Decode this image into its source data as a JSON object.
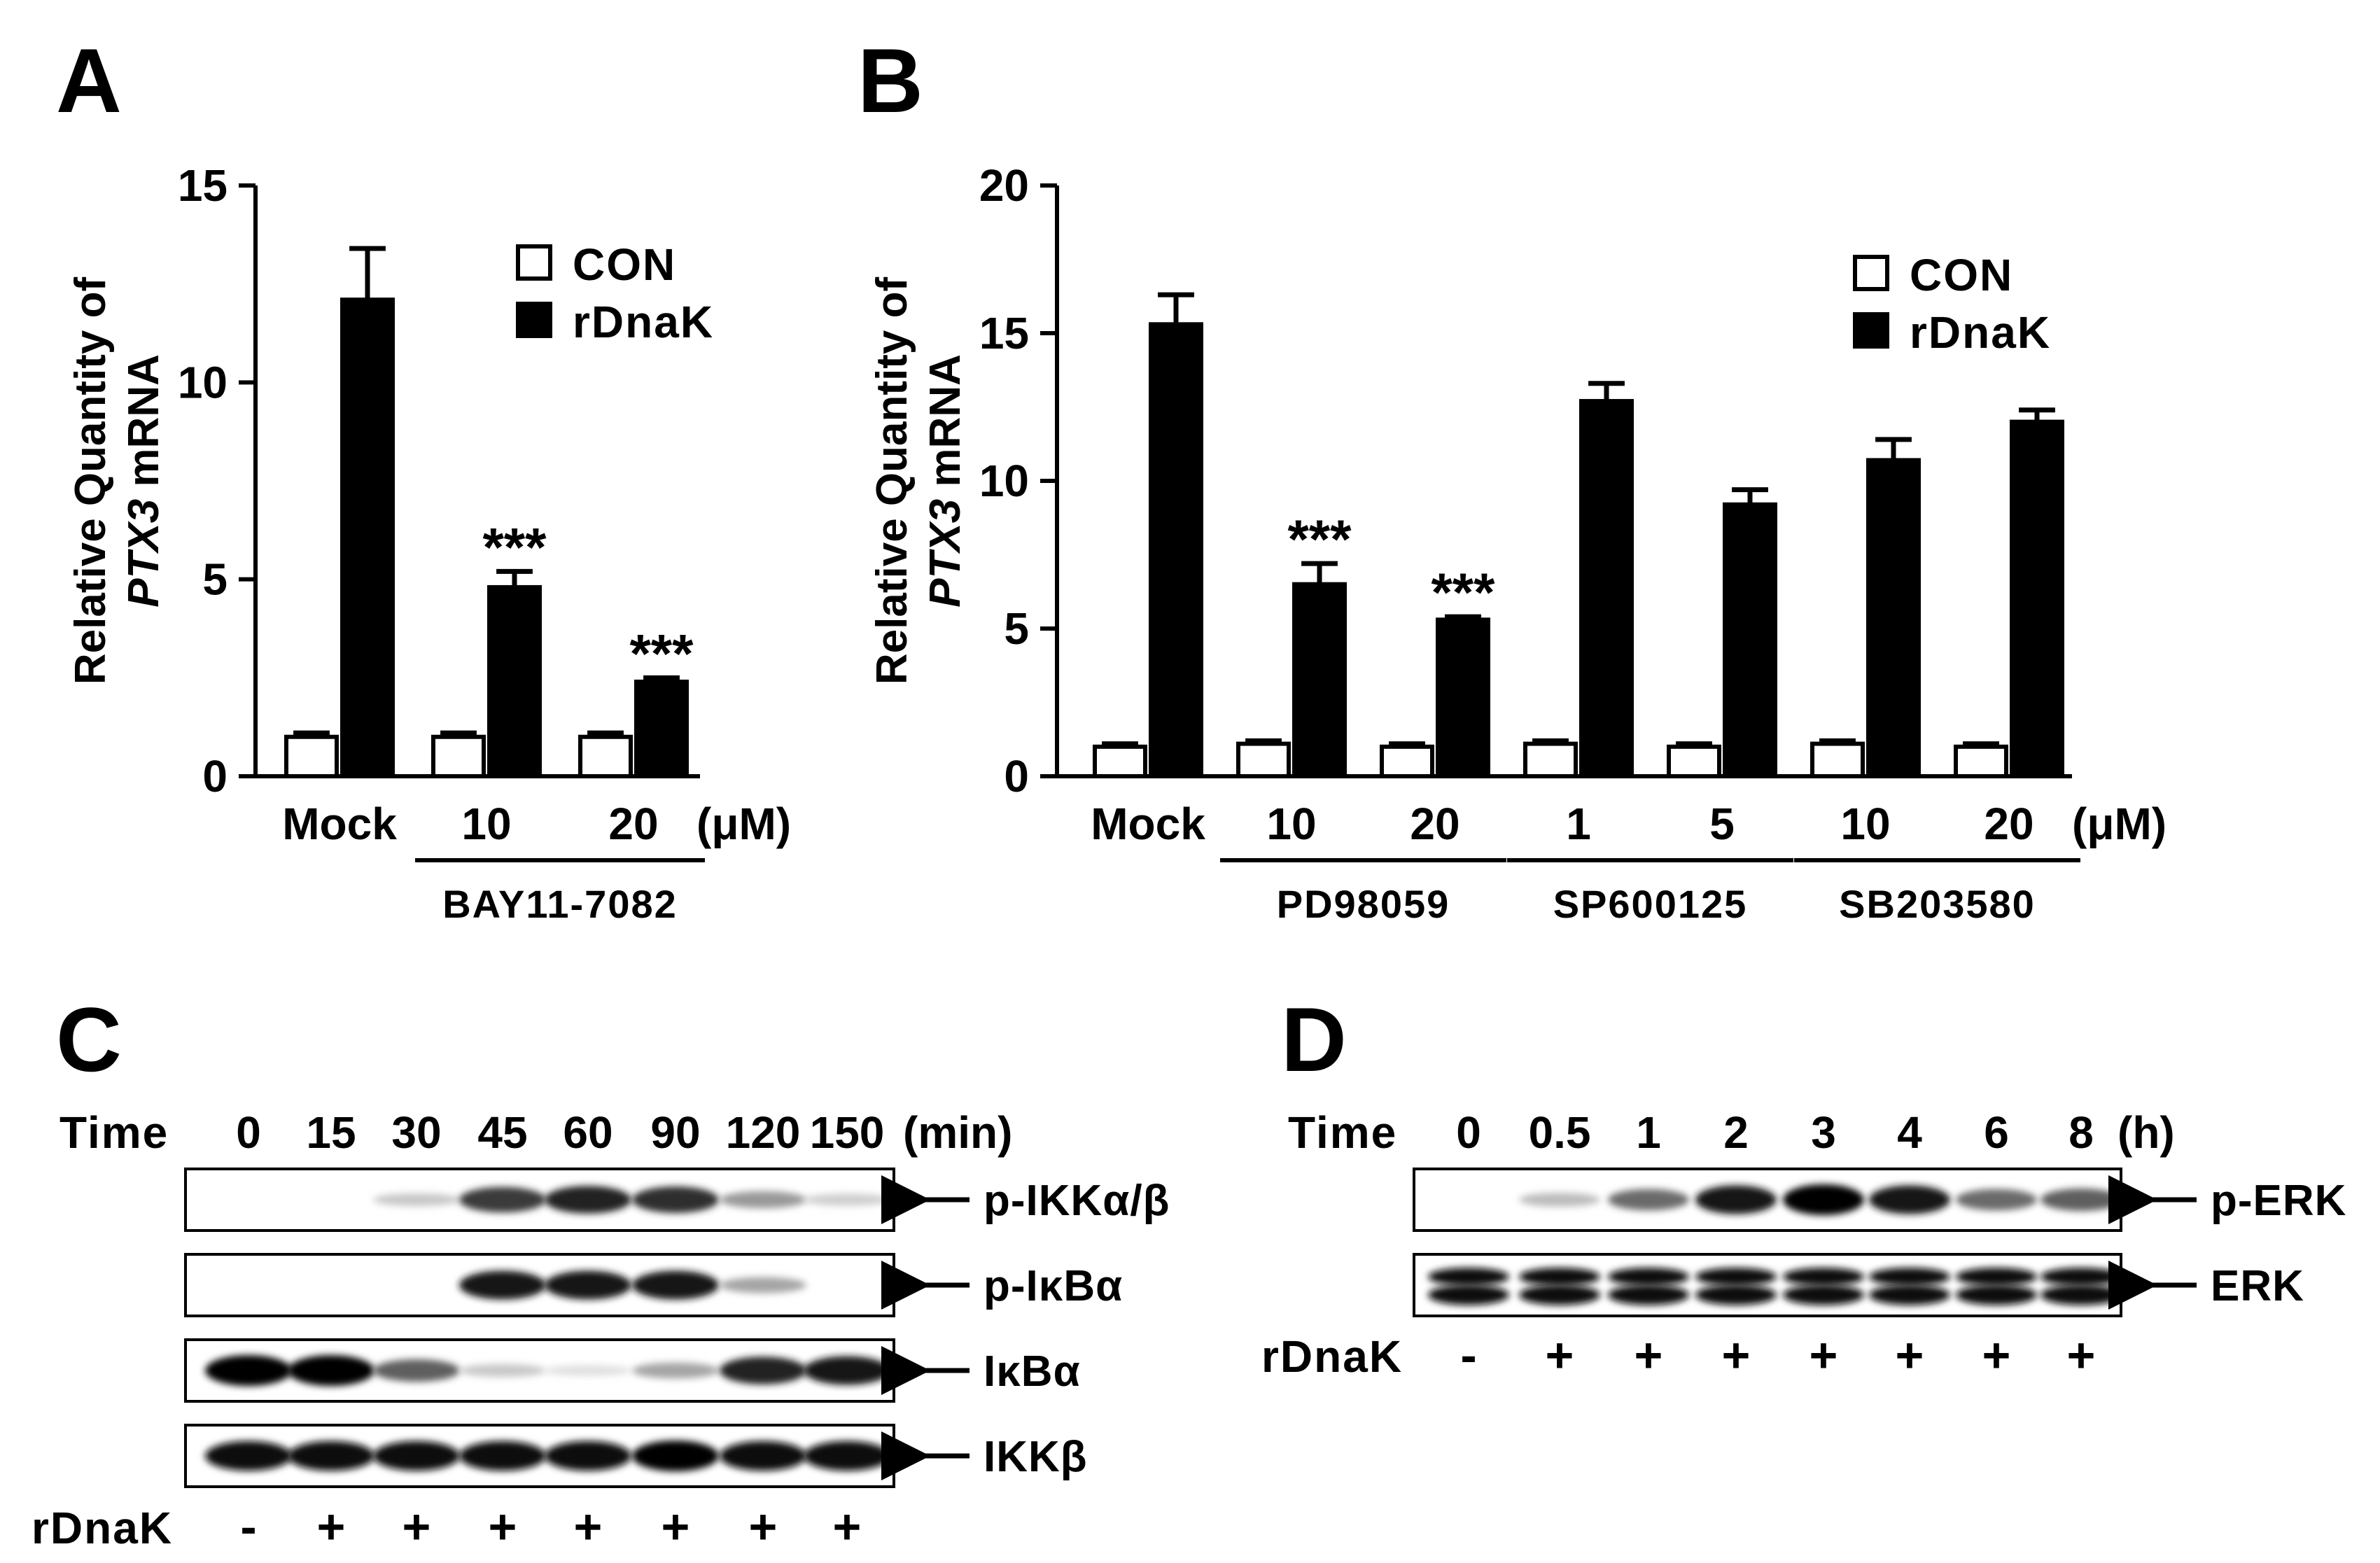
{
  "chart_data": [
    {
      "panel": "A",
      "type": "bar",
      "ylabel": "Relative Quantity of",
      "ylabel_gene": "PTX3",
      "ylabel_suffix": " mRNA",
      "ylim": [
        0,
        15
      ],
      "yticks": [
        "0",
        "5",
        "10",
        "15"
      ],
      "categories": [
        "Mock",
        "10",
        "20"
      ],
      "unit": "(μM)",
      "groups": [
        {
          "label": "BAY11-7082",
          "from": 1,
          "to": 2
        }
      ],
      "series": [
        {
          "name": "CON",
          "fill": "#ffffff",
          "values": [
            1.0,
            1.0,
            1.0
          ],
          "errors": [
            0.1,
            0.1,
            0.1
          ]
        },
        {
          "name": "rDnaK",
          "fill": "#000000",
          "values": [
            12.1,
            4.8,
            2.4
          ],
          "errors": [
            1.3,
            0.4,
            0.1
          ]
        }
      ],
      "annotations": [
        {
          "text": "***",
          "category": 1
        },
        {
          "text": "***",
          "category": 2
        }
      ]
    },
    {
      "panel": "B",
      "type": "bar",
      "ylabel": "Relative Quantity of",
      "ylabel_gene": "PTX3",
      "ylabel_suffix": " mRNA",
      "ylim": [
        0,
        20
      ],
      "yticks": [
        "0",
        "5",
        "10",
        "15",
        "20"
      ],
      "categories": [
        "Mock",
        "10",
        "20",
        "1",
        "5",
        "10",
        "20"
      ],
      "unit": "(μM)",
      "groups": [
        {
          "label": "PD98059",
          "from": 1,
          "to": 2
        },
        {
          "label": "SP600125",
          "from": 3,
          "to": 4
        },
        {
          "label": "SB203580",
          "from": 5,
          "to": 6
        }
      ],
      "series": [
        {
          "name": "CON",
          "fill": "#ffffff",
          "values": [
            1.0,
            1.1,
            1.0,
            1.1,
            1.0,
            1.1,
            1.0
          ],
          "errors": [
            0.1,
            0.1,
            0.1,
            0.1,
            0.1,
            0.1,
            0.1
          ]
        },
        {
          "name": "rDnaK",
          "fill": "#000000",
          "values": [
            15.3,
            6.5,
            5.3,
            12.7,
            9.2,
            10.7,
            12.0
          ],
          "errors": [
            1.0,
            0.7,
            0.1,
            0.6,
            0.5,
            0.7,
            0.4
          ]
        }
      ],
      "annotations": [
        {
          "text": "***",
          "category": 1
        },
        {
          "text": "***",
          "category": 2
        }
      ]
    },
    {
      "panel": "C",
      "type": "table",
      "time_label": "Time",
      "time_points": [
        "0",
        "15",
        "30",
        "45",
        "60",
        "90",
        "120",
        "150"
      ],
      "unit": "(min)",
      "treatment_label": "rDnaK",
      "treatment": [
        "-",
        "+",
        "+",
        "+",
        "+",
        "+",
        "+",
        "+"
      ],
      "blots": [
        {
          "label": "p-IKKα/β",
          "intensity": [
            0.0,
            0.0,
            0.15,
            0.75,
            0.85,
            0.8,
            0.35,
            0.12
          ]
        },
        {
          "label": "p-IκBα",
          "intensity": [
            0.0,
            0.0,
            0.0,
            0.9,
            0.9,
            0.9,
            0.3,
            0.0
          ]
        },
        {
          "label": "IκBα",
          "intensity": [
            1.0,
            1.0,
            0.6,
            0.15,
            0.05,
            0.3,
            0.85,
            0.9
          ]
        },
        {
          "label": "IKKβ",
          "intensity": [
            0.95,
            0.95,
            0.95,
            0.95,
            0.95,
            1.0,
            0.95,
            0.95
          ]
        }
      ]
    },
    {
      "panel": "D",
      "type": "table",
      "time_label": "Time",
      "time_points": [
        "0",
        "0.5",
        "1",
        "2",
        "3",
        "4",
        "6",
        "8"
      ],
      "unit": "(h)",
      "treatment_label": "rDnaK",
      "treatment": [
        "-",
        "+",
        "+",
        "+",
        "+",
        "+",
        "+",
        "+"
      ],
      "blots": [
        {
          "label": "p-ERK",
          "intensity": [
            0.0,
            0.2,
            0.55,
            0.9,
            1.0,
            0.9,
            0.55,
            0.6
          ]
        },
        {
          "label": "ERK",
          "intensity": [
            0.95,
            0.95,
            0.95,
            0.95,
            0.95,
            0.95,
            0.95,
            0.95
          ]
        }
      ]
    }
  ],
  "legend": {
    "con": "CON",
    "rdnak": "rDnaK"
  }
}
